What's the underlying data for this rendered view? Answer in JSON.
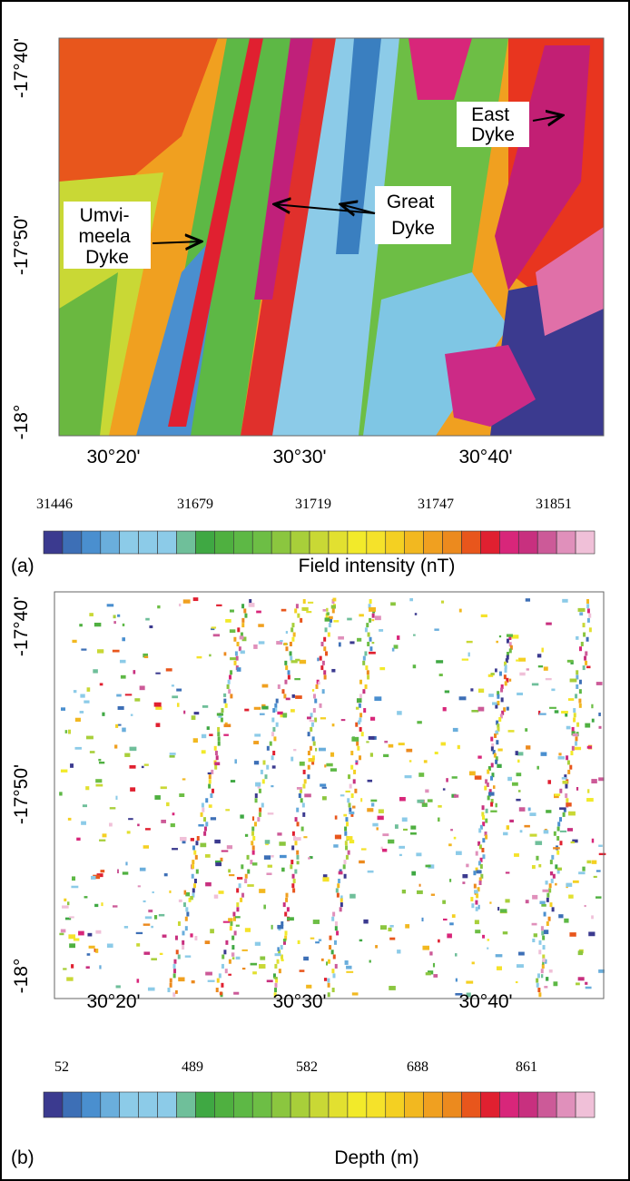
{
  "panels": [
    {
      "label": "(a)",
      "y_ticks": [
        "-17°40'",
        "-17°50'",
        "-18°"
      ],
      "x_ticks": [
        "30°20'",
        "30°30'",
        "30°40'"
      ],
      "annotations": [
        {
          "lines": [
            "East",
            "Dyke"
          ]
        },
        {
          "lines": [
            "Great",
            "Dyke"
          ]
        },
        {
          "lines": [
            "Umvi-",
            "meela",
            "Dyke"
          ]
        }
      ],
      "colorbar": {
        "labels": [
          "31446",
          "31679",
          "31719",
          "31747",
          "31851"
        ],
        "title": "Field intensity (nT)"
      }
    },
    {
      "label": "(b)",
      "y_ticks": [
        "-17°40'",
        "-17°50'",
        "-18°"
      ],
      "x_ticks": [
        "30°20'",
        "30°30'",
        "30°40'"
      ],
      "colorbar": {
        "labels": [
          "52",
          "489",
          "582",
          "688",
          "861"
        ],
        "title": "Depth (m)"
      }
    }
  ]
}
